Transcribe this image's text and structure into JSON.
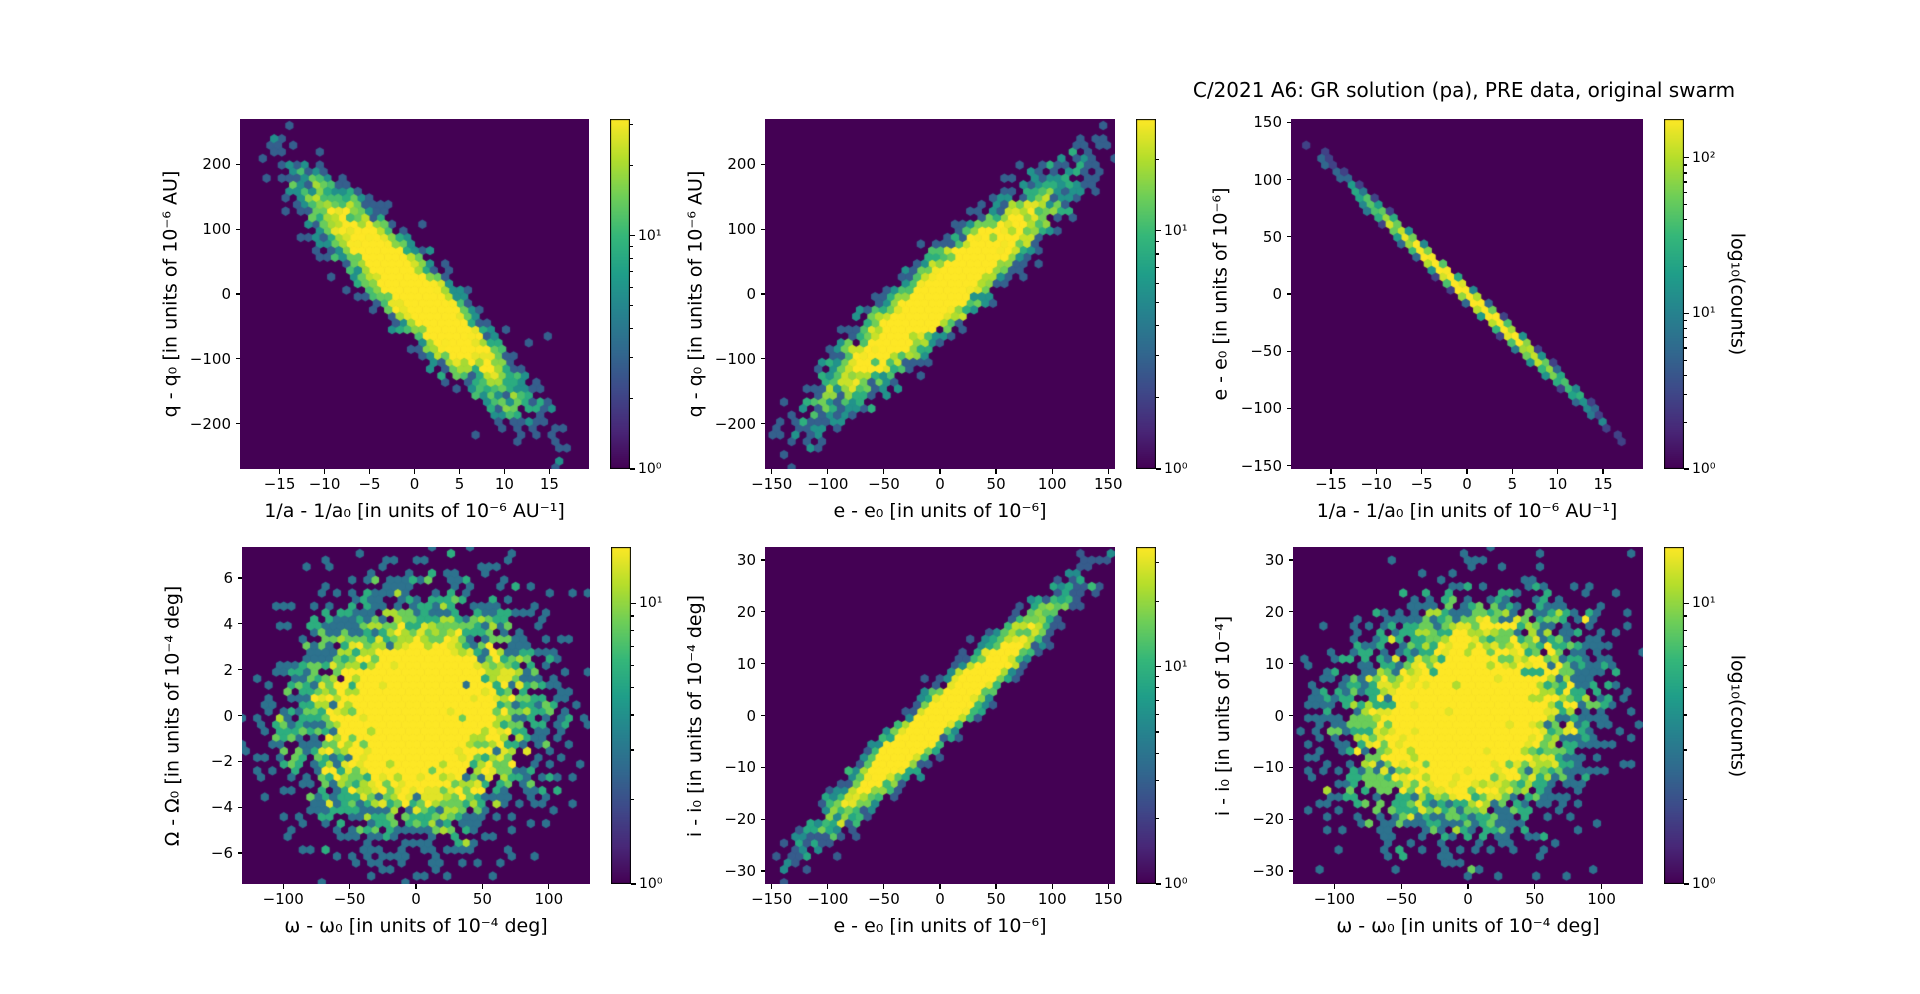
{
  "figure": {
    "title": "C/2021 A6: GR solution (pa), PRE data, original swarm",
    "background": "#ffffff",
    "colormap": "viridis",
    "colormap_stops": [
      "#440154",
      "#482878",
      "#3e4989",
      "#31688e",
      "#26828e",
      "#1f9e89",
      "#35b779",
      "#6ece58",
      "#b5de2b",
      "#fde725"
    ],
    "plot_background": "#440154",
    "text_color": "#000000"
  },
  "chart_data": [
    {
      "type": "hexbin",
      "position": "top-left",
      "xlabel": "1/a - 1/a₀ [in units of 10⁻⁶ AU⁻¹]",
      "ylabel": "q - q₀ [in units of 10⁻⁶ AU]",
      "xlim": [
        -19.4,
        19.4
      ],
      "ylim": [
        -270,
        270
      ],
      "xticks": [
        -15,
        -10,
        -5,
        0,
        5,
        10,
        15
      ],
      "yticks": [
        200,
        100,
        0,
        -100,
        -200
      ],
      "grid": false,
      "colorbar": {
        "scale": "log",
        "max_log": 1.5,
        "ticks": [
          [
            1,
            "10¹"
          ],
          [
            0,
            "10⁰"
          ]
        ],
        "label": ""
      },
      "dist": {
        "shape": "gaussian",
        "n": 4000,
        "mean_x": 0,
        "mean_y": 0,
        "sigma_x": 5.5,
        "sigma_y": 80,
        "rho": -0.93,
        "seed": 101
      },
      "description": "elongated anti-correlated cloud, yellow core"
    },
    {
      "type": "hexbin",
      "position": "top-middle",
      "xlabel": "e - e₀ [in units of 10⁻⁶]",
      "ylabel": "q - q₀ [in units of 10⁻⁶ AU]",
      "xlim": [
        -156,
        156
      ],
      "ylim": [
        -270,
        270
      ],
      "xticks": [
        -150,
        -100,
        -50,
        0,
        50,
        100,
        150
      ],
      "yticks": [
        200,
        100,
        0,
        -100,
        -200
      ],
      "grid": false,
      "colorbar": {
        "scale": "log",
        "max_log": 1.47,
        "ticks": [
          [
            1,
            "10¹"
          ],
          [
            0,
            "10⁰"
          ]
        ],
        "label": ""
      },
      "dist": {
        "shape": "gaussian",
        "n": 4000,
        "mean_x": 0,
        "mean_y": 0,
        "sigma_x": 50,
        "sigma_y": 80,
        "rho": 0.93,
        "seed": 202
      },
      "description": "elongated positively correlated cloud, yellow core"
    },
    {
      "type": "hexbin",
      "position": "top-right",
      "xlabel": "1/a - 1/a₀ [in units of 10⁻⁶ AU⁻¹]",
      "ylabel": "e - e₀ [in units of 10⁻⁶]",
      "xlim": [
        -19.4,
        19.4
      ],
      "ylim": [
        -153,
        153
      ],
      "xticks": [
        -15,
        -10,
        -5,
        0,
        5,
        10,
        15
      ],
      "yticks": [
        150,
        100,
        50,
        0,
        -50,
        -100,
        -150
      ],
      "grid": false,
      "colorbar": {
        "scale": "log",
        "max_log": 2.25,
        "ticks": [
          [
            2,
            "10²"
          ],
          [
            1,
            "10¹"
          ],
          [
            0,
            "10⁰"
          ]
        ],
        "label": "log₁₀(counts)"
      },
      "dist": {
        "shape": "gaussian",
        "n": 3000,
        "mean_x": 0,
        "mean_y": 0,
        "sigma_x": 5.5,
        "sigma_y": 40.5,
        "rho": -0.998,
        "seed": 303
      },
      "description": "very thin anti-correlated diagonal line, bright yellow in the middle"
    },
    {
      "type": "hexbin",
      "position": "bottom-left",
      "xlabel": "ω - ω₀ [in units of 10⁻⁴ deg]",
      "ylabel": "Ω - Ω₀ [in units of 10⁻⁴ deg]",
      "xlim": [
        -131,
        131
      ],
      "ylim": [
        -7.35,
        7.35
      ],
      "xticks": [
        -100,
        -50,
        0,
        50,
        100
      ],
      "yticks": [
        6,
        4,
        2,
        0,
        -2,
        -4,
        -6
      ],
      "grid": false,
      "colorbar": {
        "scale": "log",
        "max_log": 1.2,
        "ticks": [
          [
            1,
            "10¹"
          ],
          [
            0,
            "10⁰"
          ]
        ],
        "label": ""
      },
      "dist": {
        "shape": "gaussian",
        "n": 5500,
        "mean_x": 0,
        "mean_y": 0,
        "sigma_x": 42,
        "sigma_y": 2.4,
        "rho": 0.04,
        "seed": 404
      },
      "description": "roughly isotropic speckled blob, no correlation"
    },
    {
      "type": "hexbin",
      "position": "bottom-middle",
      "xlabel": "e - e₀ [in units of 10⁻⁶]",
      "ylabel": "i - i₀ [in units of 10⁻⁴ deg]",
      "xlim": [
        -156,
        156
      ],
      "ylim": [
        -32.5,
        32.5
      ],
      "xticks": [
        -150,
        -100,
        -50,
        0,
        50,
        100,
        150
      ],
      "yticks": [
        30,
        20,
        10,
        0,
        -10,
        -20,
        -30
      ],
      "grid": false,
      "colorbar": {
        "scale": "log",
        "max_log": 1.55,
        "ticks": [
          [
            1,
            "10¹"
          ],
          [
            0,
            "10⁰"
          ]
        ],
        "label": ""
      },
      "dist": {
        "shape": "gaussian",
        "n": 3500,
        "mean_x": 0,
        "mean_y": 0,
        "sigma_x": 50,
        "sigma_y": 10.5,
        "rho": 0.97,
        "seed": 505
      },
      "description": "narrow positively correlated diagonal band, yellow core"
    },
    {
      "type": "hexbin",
      "position": "bottom-right",
      "xlabel": "ω - ω₀ [in units of 10⁻⁴ deg]",
      "ylabel": "i - i₀ [in units of 10⁻⁴]",
      "xlim": [
        -131,
        131
      ],
      "ylim": [
        -32.5,
        32.5
      ],
      "xticks": [
        -100,
        -50,
        0,
        50,
        100
      ],
      "yticks": [
        30,
        20,
        10,
        0,
        -10,
        -20,
        -30
      ],
      "grid": false,
      "colorbar": {
        "scale": "log",
        "max_log": 1.2,
        "ticks": [
          [
            1,
            "10¹"
          ],
          [
            0,
            "10⁰"
          ]
        ],
        "label": "log₁₀(counts)"
      },
      "dist": {
        "shape": "gaussian",
        "n": 5500,
        "mean_x": 0,
        "mean_y": 0,
        "sigma_x": 42,
        "sigma_y": 10,
        "rho": 0.15,
        "seed": 606
      },
      "description": "roughly isotropic speckled blob, weak correlation"
    }
  ]
}
